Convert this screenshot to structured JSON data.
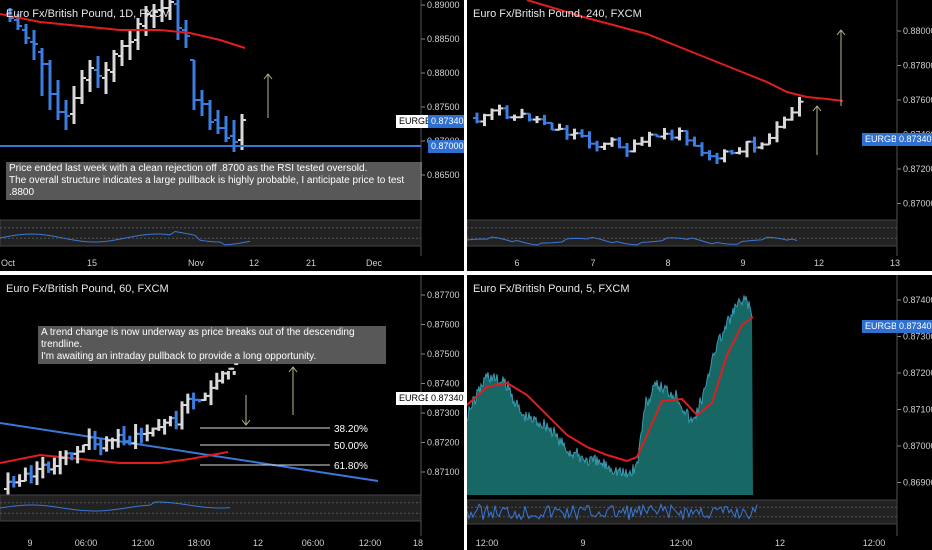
{
  "colors": {
    "bull": "#3b7de0",
    "bear": "#d9d9d9",
    "ma": "#e21d1d",
    "line": "#3a78d8",
    "arrow": "#b8b890",
    "area": "#1f8a86"
  },
  "panels": {
    "p1": {
      "title": "Euro Fx/British Pound, 1D, FXCM",
      "y_ticks": [
        "0.89000",
        "0.88500",
        "0.88000",
        "0.87500",
        "0.87000",
        "0.86500"
      ],
      "x_ticks": [
        "Oct",
        "15",
        "Nov",
        "12",
        "21",
        "Dec"
      ],
      "price_tag": "EURGBP",
      "price_value": "0.87340",
      "level_value": "0.87000",
      "note_lines": [
        "Price ended last week with a clean rejection off .8700 as the RSI tested oversold.",
        "The overall structure indicates a large pullback is highly probable, I anticipate price to test .8800"
      ]
    },
    "p2": {
      "title": "Euro Fx/British Pound, 240, FXCM",
      "y_ticks": [
        "0.88000",
        "0.87800",
        "0.87600",
        "0.87400",
        "0.87200",
        "0.87000"
      ],
      "x_ticks": [
        "6",
        "7",
        "8",
        "9",
        "12",
        "13"
      ],
      "price_tag": "EURGBP",
      "price_value": "0.87340"
    },
    "p3": {
      "title": "Euro Fx/British Pound, 60, FXCM",
      "y_ticks": [
        "0.87700",
        "0.87600",
        "0.87500",
        "0.87400",
        "0.87300",
        "0.87200",
        "0.87100"
      ],
      "x_ticks": [
        "9",
        "06:00",
        "12:00",
        "18:00",
        "12",
        "06:00",
        "12:00",
        "18"
      ],
      "price_tag": "EURGBP",
      "price_value": "0.87340",
      "note_lines": [
        "A trend change is now underway as price breaks out of the descending trendline.",
        "I'm awaiting an intraday pullback to provide a long opportunity."
      ],
      "fib_levels": [
        "38.20%",
        "50.00%",
        "61.80%"
      ]
    },
    "p4": {
      "title": "Euro Fx/British Pound, 5, FXCM",
      "y_ticks": [
        "0.87400",
        "0.87300",
        "0.87200",
        "0.87100",
        "0.87000",
        "0.86900"
      ],
      "x_ticks": [
        "12:00",
        "9",
        "12:00",
        "12",
        "12:00"
      ],
      "price_tag": "EURGBP",
      "price_value": "0.87340"
    }
  }
}
